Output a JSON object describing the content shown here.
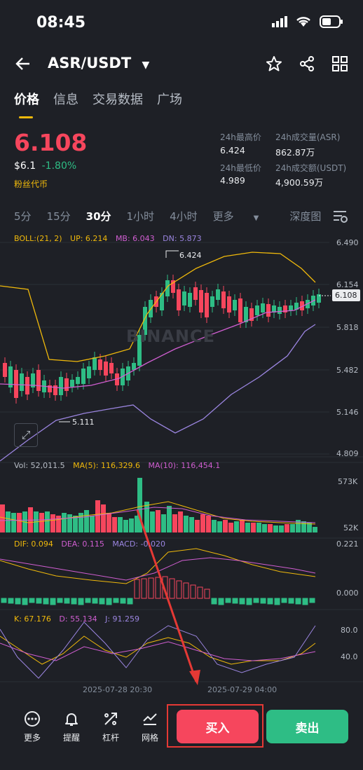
{
  "status_bar": {
    "time": "08:45"
  },
  "header": {
    "pair": "ASR/USDT"
  },
  "tabs": [
    {
      "label": "价格",
      "active": true
    },
    {
      "label": "信息",
      "active": false
    },
    {
      "label": "交易数据",
      "active": false
    },
    {
      "label": "广场",
      "active": false
    }
  ],
  "ticker": {
    "last_price": "6.108",
    "fiat_price": "$6.1",
    "change": "-1.80%",
    "tag": "粉丝代币",
    "high_label": "24h最高价",
    "high_value": "6.424",
    "low_label": "24h最低价",
    "low_value": "4.989",
    "vol_label": "24h成交量(ASR)",
    "vol_value": "862.87万",
    "amount_label": "24h成交额(USDT)",
    "amount_value": "4,900.59万"
  },
  "timeframes": {
    "items": [
      "5分",
      "15分",
      "30分",
      "1小时",
      "4小时",
      "更多"
    ],
    "active": "30分",
    "depth": "深度图"
  },
  "main_chart": {
    "boll_label": "BOLL:(21, 2)",
    "up_label": "UP: 6.214",
    "mb_label": "MB: 6.043",
    "dn_label": "DN: 5.873",
    "y_ticks": [
      "6.490",
      "6.154",
      "5.818",
      "5.482",
      "5.146",
      "4.809"
    ],
    "last_tag": "6.108",
    "high_mark": "6.424",
    "low_mark": "5.111",
    "watermark": "BINANCE"
  },
  "volume_chart": {
    "vol_label": "Vol: 52,011.5",
    "ma5_label": "MA(5): 116,329.6",
    "ma10_label": "MA(10): 116,454.1",
    "y_ticks": [
      "573K",
      "52K"
    ]
  },
  "macd_chart": {
    "dif_label": "DIF: 0.094",
    "dea_label": "DEA: 0.115",
    "macd_label": "MACD: -0.020",
    "y_ticks": [
      "0.221",
      "0.000"
    ]
  },
  "kdj_chart": {
    "k_label": "K: 67.176",
    "d_label": "D: 55.134",
    "j_label": "J: 91.259",
    "y_ticks": [
      "80.0",
      "40.0"
    ]
  },
  "x_axis": [
    "2025-07-28 20:30",
    "2025-07-29 04:00"
  ],
  "bottom_bar": {
    "more": "更多",
    "alert": "提醒",
    "leverage": "杠杆",
    "grid": "网格",
    "buy": "买入",
    "sell": "卖出"
  },
  "colors": {
    "up": "#2ebd85",
    "down": "#f6465d",
    "accent": "#f0b90b",
    "bg": "#1e2026"
  }
}
